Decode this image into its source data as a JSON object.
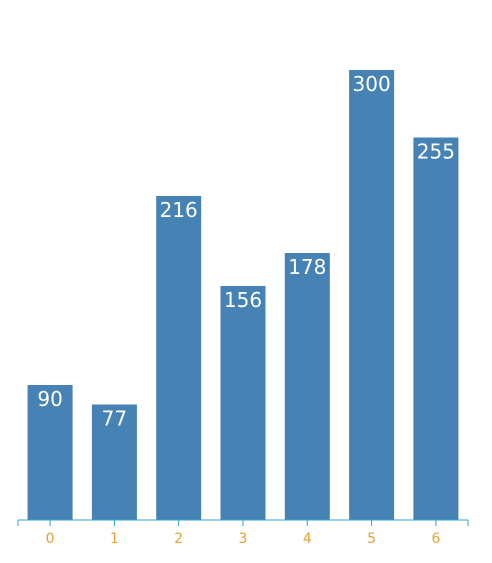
{
  "chart_data": {
    "type": "bar",
    "categories": [
      "0",
      "1",
      "2",
      "3",
      "4",
      "5",
      "6"
    ],
    "values": [
      90,
      77,
      216,
      156,
      178,
      300,
      255
    ],
    "ylim": [
      0,
      300
    ],
    "grid": false,
    "colors": {
      "bar": "#4682b4",
      "bar_label": "#ffffff",
      "axis": "#2ea4d0",
      "tick_label": "#e8a030"
    }
  }
}
